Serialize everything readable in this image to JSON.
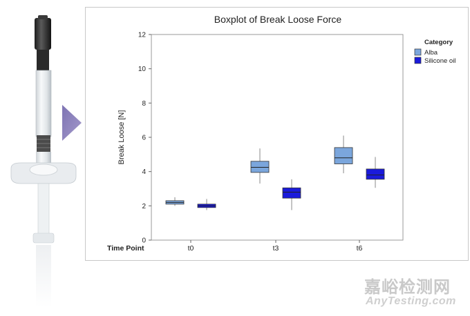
{
  "chart_data": {
    "type": "boxplot",
    "title": "Boxplot of Break Loose Force",
    "ylabel": "Break Loose [N]",
    "xlabel_prefix": "Time Point",
    "ylim": [
      0,
      12
    ],
    "yticks": [
      0,
      2,
      4,
      6,
      8,
      10,
      12
    ],
    "categories": [
      "t0",
      "t3",
      "t6"
    ],
    "legend_title": "Category",
    "series": [
      {
        "name": "Alba",
        "color": "#7ba6dc",
        "boxes": [
          {
            "min": 2.0,
            "q1": 2.1,
            "median": 2.2,
            "q3": 2.3,
            "max": 2.5
          },
          {
            "min": 3.3,
            "q1": 3.95,
            "median": 4.25,
            "q3": 4.6,
            "max": 5.35
          },
          {
            "min": 3.9,
            "q1": 4.45,
            "median": 4.8,
            "q3": 5.4,
            "max": 6.1
          }
        ]
      },
      {
        "name": "Silicone oil",
        "color": "#1a1adb",
        "boxes": [
          {
            "min": 1.75,
            "q1": 1.9,
            "median": 2.0,
            "q3": 2.1,
            "max": 2.4
          },
          {
            "min": 1.75,
            "q1": 2.45,
            "median": 2.8,
            "q3": 3.05,
            "max": 3.55
          },
          {
            "min": 3.05,
            "q1": 3.55,
            "median": 3.8,
            "q3": 4.15,
            "max": 4.85
          }
        ]
      }
    ]
  },
  "watermark": {
    "cn": "嘉峪检测网",
    "en": "AnyTesting.com"
  }
}
